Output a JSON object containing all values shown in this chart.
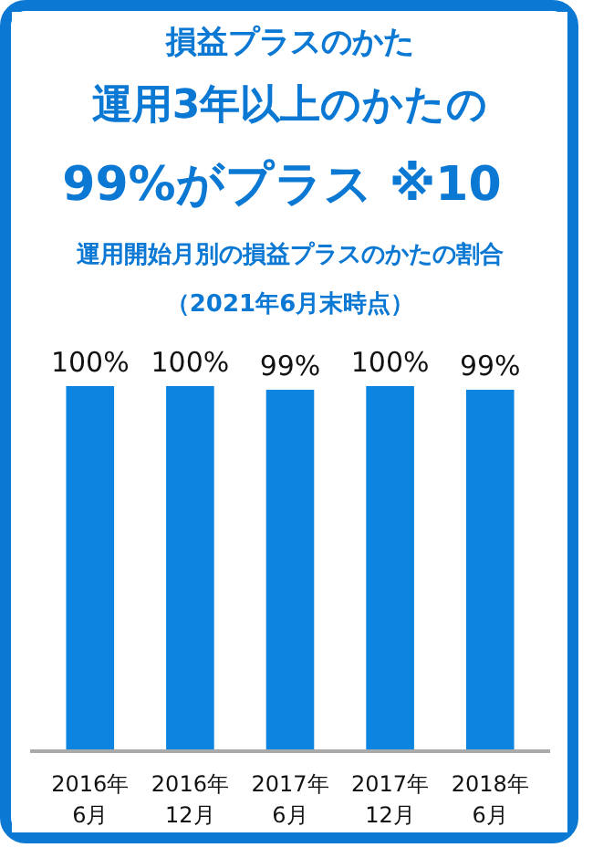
{
  "chart_data": {
    "type": "bar",
    "title": "運用開始月別の損益プラスのかたの割合",
    "subtitle": "（2021年6月末時点）",
    "annotations": [
      "損益プラスのかた",
      "運用3年以上のかたの",
      "99%がプラス",
      "※10"
    ],
    "categories": [
      "2016年\n6月",
      "2016年\n12月",
      "2017年\n6月",
      "2017年\n12月",
      "2018年\n6月"
    ],
    "values": [
      100,
      100,
      99,
      100,
      99
    ],
    "value_labels": [
      "100%",
      "100%",
      "99%",
      "100%",
      "99%"
    ],
    "color": "#0d84e0",
    "grid": false
  }
}
